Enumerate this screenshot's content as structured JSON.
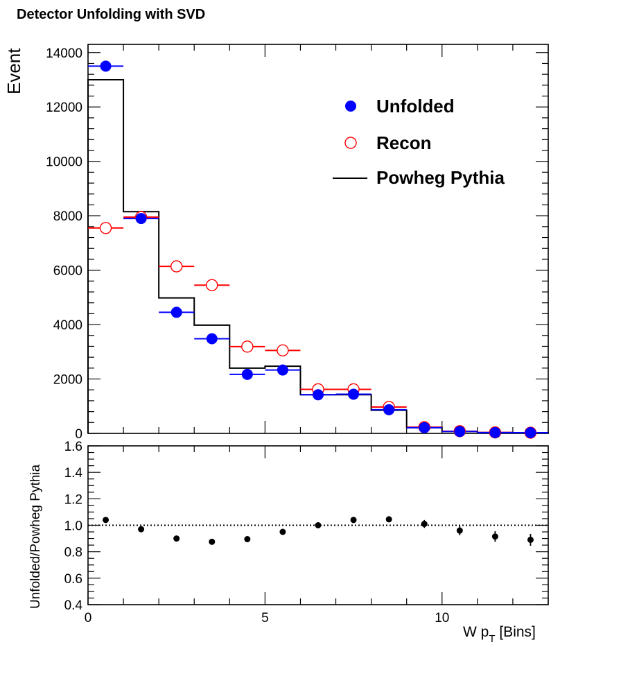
{
  "title": "Detector Unfolding with SVD",
  "chart_data": [
    {
      "type": "scatter",
      "title": "Detector Unfolding with SVD",
      "xlabel": "W p_T [Bins]",
      "xlabel_main": "W p",
      "xlabel_sub": "T",
      "xlabel_tail": " [Bins]",
      "ylabel": "Event",
      "xlim": [
        0,
        13
      ],
      "ylim": [
        0,
        14300
      ],
      "y_ticks": [
        0,
        2000,
        4000,
        6000,
        8000,
        10000,
        12000,
        14000
      ],
      "legend_placement": "top-right",
      "series": [
        {
          "name": "Unfolded",
          "color": "#0000ff",
          "marker": "filled-circle",
          "x": [
            0.5,
            1.5,
            2.5,
            3.5,
            4.5,
            5.5,
            6.5,
            7.5,
            8.5,
            9.5,
            10.5,
            11.5,
            12.5
          ],
          "values": [
            13500,
            7900,
            4450,
            3480,
            2170,
            2330,
            1420,
            1440,
            870,
            210,
            70,
            30,
            25
          ]
        },
        {
          "name": "Recon",
          "color": "#ff0000",
          "marker": "open-circle",
          "x": [
            0.5,
            1.5,
            2.5,
            3.5,
            4.5,
            5.5,
            6.5,
            7.5,
            8.5,
            9.5,
            10.5,
            11.5,
            12.5
          ],
          "values": [
            7550,
            7950,
            6140,
            5450,
            3190,
            3050,
            1620,
            1620,
            970,
            230,
            80,
            35,
            25
          ]
        },
        {
          "name": "Powheg Pythia",
          "color": "#000000",
          "marker": "step-line",
          "bin_edges": [
            0,
            1,
            2,
            3,
            4,
            5,
            6,
            7,
            8,
            9,
            10,
            11,
            12,
            13
          ],
          "values": [
            13000,
            8150,
            4980,
            3980,
            2400,
            2470,
            1420,
            1420,
            850,
            210,
            70,
            30,
            25
          ]
        }
      ]
    },
    {
      "type": "scatter",
      "xlabel": "W p_T [Bins]",
      "ylabel": "Unfolded/Powheg Pythia",
      "xlim": [
        0,
        13
      ],
      "ylim": [
        0.4,
        1.6
      ],
      "y_ticks": [
        "0.4",
        "0.6",
        "0.8",
        "1.0",
        "1.2",
        "1.4",
        "1.6"
      ],
      "x_ticks": [
        "0",
        "5",
        "10"
      ],
      "reference_line": 1.0,
      "series": [
        {
          "color": "#000000",
          "marker": "filled-circle",
          "x": [
            0.5,
            1.5,
            2.5,
            3.5,
            4.5,
            5.5,
            6.5,
            7.5,
            8.5,
            9.5,
            10.5,
            11.5,
            12.5
          ],
          "values": [
            1.04,
            0.97,
            0.9,
            0.875,
            0.895,
            0.95,
            1.0,
            1.04,
            1.045,
            1.01,
            0.96,
            0.915,
            0.89
          ],
          "errors": [
            0.012,
            0.012,
            0.012,
            0.012,
            0.014,
            0.014,
            0.016,
            0.016,
            0.02,
            0.03,
            0.035,
            0.04,
            0.045
          ]
        }
      ]
    }
  ]
}
